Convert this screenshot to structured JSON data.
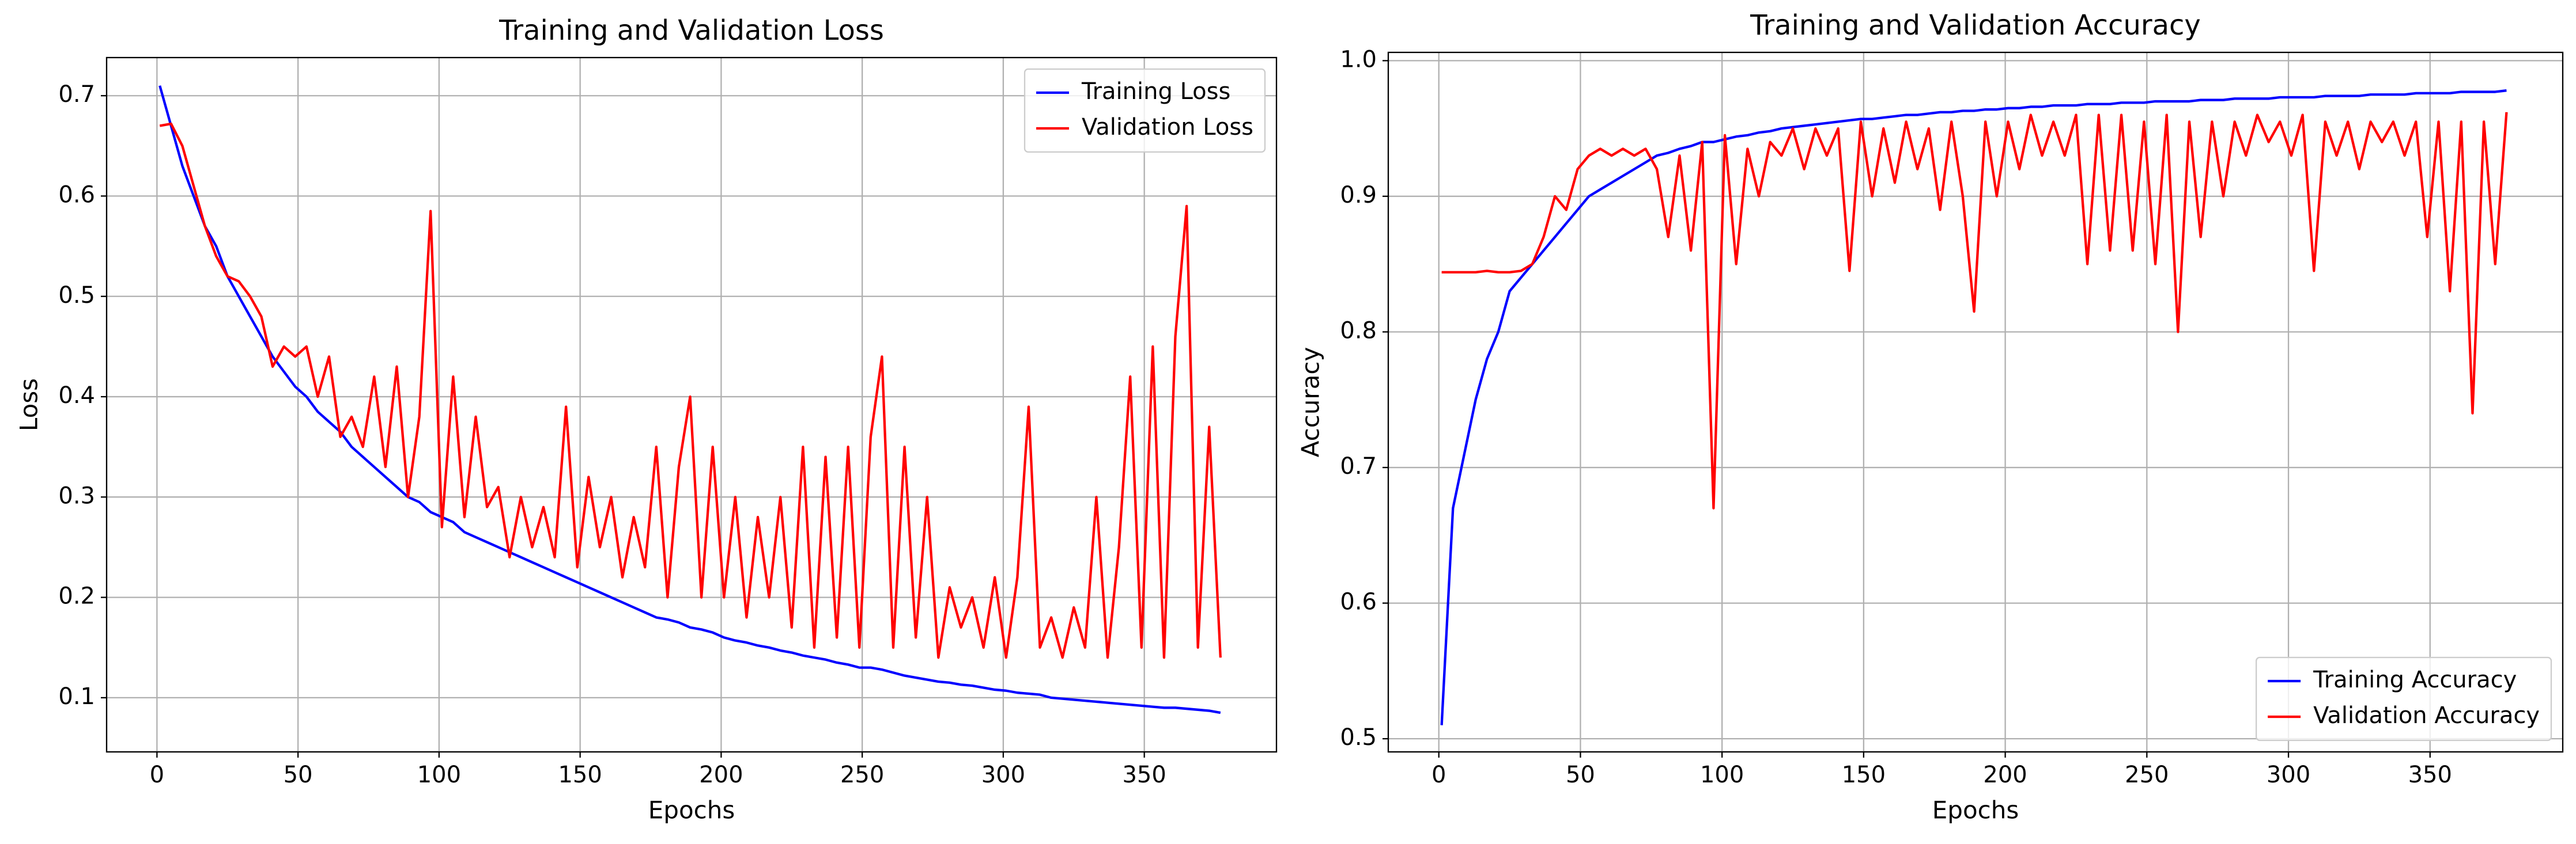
{
  "chart_data": [
    {
      "type": "line",
      "title": "Training and Validation Loss",
      "x_label": "Epochs",
      "y_label": "Loss",
      "x": [
        1,
        5,
        9,
        13,
        17,
        21,
        25,
        29,
        33,
        37,
        41,
        45,
        49,
        53,
        57,
        61,
        65,
        69,
        73,
        77,
        81,
        85,
        89,
        93,
        97,
        101,
        105,
        109,
        113,
        117,
        121,
        125,
        129,
        133,
        137,
        141,
        145,
        149,
        153,
        157,
        161,
        165,
        169,
        173,
        177,
        181,
        185,
        189,
        193,
        197,
        201,
        205,
        209,
        213,
        217,
        221,
        225,
        229,
        233,
        237,
        241,
        245,
        249,
        253,
        257,
        261,
        265,
        269,
        273,
        277,
        281,
        285,
        289,
        293,
        297,
        301,
        305,
        309,
        313,
        317,
        321,
        325,
        329,
        333,
        337,
        341,
        345,
        349,
        353,
        357,
        361,
        365,
        369,
        373,
        377
      ],
      "series": [
        {
          "name": "Training Loss",
          "color": "#0000ff",
          "values": [
            0.71,
            0.67,
            0.63,
            0.6,
            0.57,
            0.55,
            0.52,
            0.5,
            0.48,
            0.46,
            0.44,
            0.425,
            0.41,
            0.4,
            0.385,
            0.375,
            0.365,
            0.35,
            0.34,
            0.33,
            0.32,
            0.31,
            0.3,
            0.295,
            0.285,
            0.28,
            0.275,
            0.265,
            0.26,
            0.255,
            0.25,
            0.245,
            0.24,
            0.235,
            0.23,
            0.225,
            0.22,
            0.215,
            0.21,
            0.205,
            0.2,
            0.195,
            0.19,
            0.185,
            0.18,
            0.178,
            0.175,
            0.17,
            0.168,
            0.165,
            0.16,
            0.157,
            0.155,
            0.152,
            0.15,
            0.147,
            0.145,
            0.142,
            0.14,
            0.138,
            0.135,
            0.133,
            0.13,
            0.13,
            0.128,
            0.125,
            0.122,
            0.12,
            0.118,
            0.116,
            0.115,
            0.113,
            0.112,
            0.11,
            0.108,
            0.107,
            0.105,
            0.104,
            0.103,
            0.1,
            0.099,
            0.098,
            0.097,
            0.096,
            0.095,
            0.094,
            0.093,
            0.092,
            0.091,
            0.09,
            0.09,
            0.089,
            0.088,
            0.087,
            0.085
          ]
        },
        {
          "name": "Validation Loss",
          "color": "#ff0000",
          "values": [
            0.67,
            0.672,
            0.65,
            0.61,
            0.57,
            0.54,
            0.52,
            0.515,
            0.5,
            0.48,
            0.43,
            0.45,
            0.44,
            0.45,
            0.4,
            0.44,
            0.36,
            0.38,
            0.35,
            0.42,
            0.33,
            0.43,
            0.3,
            0.38,
            0.585,
            0.27,
            0.42,
            0.28,
            0.38,
            0.29,
            0.31,
            0.24,
            0.3,
            0.25,
            0.29,
            0.24,
            0.39,
            0.23,
            0.32,
            0.25,
            0.3,
            0.22,
            0.28,
            0.23,
            0.35,
            0.2,
            0.33,
            0.4,
            0.2,
            0.35,
            0.2,
            0.3,
            0.18,
            0.28,
            0.2,
            0.3,
            0.17,
            0.35,
            0.15,
            0.34,
            0.16,
            0.35,
            0.15,
            0.36,
            0.44,
            0.15,
            0.35,
            0.16,
            0.3,
            0.14,
            0.21,
            0.17,
            0.2,
            0.15,
            0.22,
            0.14,
            0.22,
            0.39,
            0.15,
            0.18,
            0.14,
            0.19,
            0.15,
            0.3,
            0.14,
            0.25,
            0.42,
            0.15,
            0.45,
            0.14,
            0.46,
            0.59,
            0.15,
            0.37,
            0.14
          ]
        }
      ],
      "xlim": [
        -17.85,
        396.85
      ],
      "ylim": [
        0.046,
        0.738
      ],
      "xticks": [
        0,
        50,
        100,
        150,
        200,
        250,
        300,
        350
      ],
      "yticks": [
        0.1,
        0.2,
        0.3,
        0.4,
        0.5,
        0.6,
        0.7
      ],
      "grid": true,
      "legend": "upper right"
    },
    {
      "type": "line",
      "title": "Training and Validation Accuracy",
      "x_label": "Epochs",
      "y_label": "Accuracy",
      "x": [
        1,
        5,
        9,
        13,
        17,
        21,
        25,
        29,
        33,
        37,
        41,
        45,
        49,
        53,
        57,
        61,
        65,
        69,
        73,
        77,
        81,
        85,
        89,
        93,
        97,
        101,
        105,
        109,
        113,
        117,
        121,
        125,
        129,
        133,
        137,
        141,
        145,
        149,
        153,
        157,
        161,
        165,
        169,
        173,
        177,
        181,
        185,
        189,
        193,
        197,
        201,
        205,
        209,
        213,
        217,
        221,
        225,
        229,
        233,
        237,
        241,
        245,
        249,
        253,
        257,
        261,
        265,
        269,
        273,
        277,
        281,
        285,
        289,
        293,
        297,
        301,
        305,
        309,
        313,
        317,
        321,
        325,
        329,
        333,
        337,
        341,
        345,
        349,
        353,
        357,
        361,
        365,
        369,
        373,
        377
      ],
      "series": [
        {
          "name": "Training Accuracy",
          "color": "#0000ff",
          "values": [
            0.51,
            0.67,
            0.71,
            0.75,
            0.78,
            0.8,
            0.83,
            0.84,
            0.85,
            0.86,
            0.87,
            0.88,
            0.89,
            0.9,
            0.905,
            0.91,
            0.915,
            0.92,
            0.925,
            0.93,
            0.932,
            0.935,
            0.937,
            0.94,
            0.94,
            0.942,
            0.944,
            0.945,
            0.947,
            0.948,
            0.95,
            0.951,
            0.952,
            0.953,
            0.954,
            0.955,
            0.956,
            0.957,
            0.957,
            0.958,
            0.959,
            0.96,
            0.96,
            0.961,
            0.962,
            0.962,
            0.963,
            0.963,
            0.964,
            0.964,
            0.965,
            0.965,
            0.966,
            0.966,
            0.967,
            0.967,
            0.967,
            0.968,
            0.968,
            0.968,
            0.969,
            0.969,
            0.969,
            0.97,
            0.97,
            0.97,
            0.97,
            0.971,
            0.971,
            0.971,
            0.972,
            0.972,
            0.972,
            0.972,
            0.973,
            0.973,
            0.973,
            0.973,
            0.974,
            0.974,
            0.974,
            0.974,
            0.975,
            0.975,
            0.975,
            0.975,
            0.976,
            0.976,
            0.976,
            0.976,
            0.977,
            0.977,
            0.977,
            0.977,
            0.978
          ]
        },
        {
          "name": "Validation Accuracy",
          "color": "#ff0000",
          "values": [
            0.844,
            0.844,
            0.844,
            0.844,
            0.845,
            0.844,
            0.844,
            0.845,
            0.85,
            0.87,
            0.9,
            0.89,
            0.92,
            0.93,
            0.935,
            0.93,
            0.935,
            0.93,
            0.935,
            0.92,
            0.87,
            0.93,
            0.86,
            0.94,
            0.67,
            0.945,
            0.85,
            0.935,
            0.9,
            0.94,
            0.93,
            0.95,
            0.92,
            0.95,
            0.93,
            0.95,
            0.845,
            0.955,
            0.9,
            0.95,
            0.91,
            0.955,
            0.92,
            0.95,
            0.89,
            0.955,
            0.9,
            0.815,
            0.955,
            0.9,
            0.955,
            0.92,
            0.96,
            0.93,
            0.955,
            0.93,
            0.96,
            0.85,
            0.96,
            0.86,
            0.96,
            0.86,
            0.955,
            0.85,
            0.96,
            0.8,
            0.955,
            0.87,
            0.955,
            0.9,
            0.955,
            0.93,
            0.96,
            0.94,
            0.955,
            0.93,
            0.96,
            0.845,
            0.955,
            0.93,
            0.955,
            0.92,
            0.955,
            0.94,
            0.955,
            0.93,
            0.955,
            0.87,
            0.955,
            0.83,
            0.955,
            0.74,
            0.955,
            0.85,
            0.962
          ]
        }
      ],
      "xlim": [
        -17.85,
        396.85
      ],
      "ylim": [
        0.4903,
        1.0061
      ],
      "xticks": [
        0,
        50,
        100,
        150,
        200,
        250,
        300,
        350
      ],
      "yticks": [
        0.5,
        0.6,
        0.7,
        0.8,
        0.9,
        {
          "value": 1,
          "label": "1.0"
        }
      ],
      "grid": true,
      "legend": "lower right"
    }
  ]
}
